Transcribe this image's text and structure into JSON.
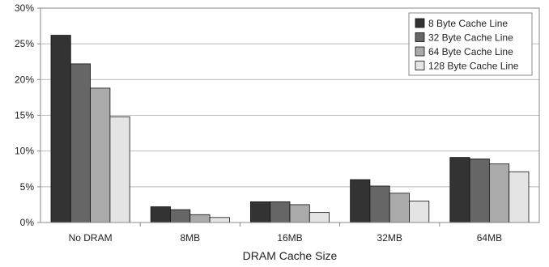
{
  "chart_data": {
    "type": "bar",
    "title": "",
    "xlabel": "DRAM Cache Size",
    "ylabel": "",
    "categories": [
      "No DRAM",
      "8MB",
      "16MB",
      "32MB",
      "64MB"
    ],
    "ylim": [
      0,
      30
    ],
    "yticks": [
      0,
      5,
      10,
      15,
      20,
      25,
      30
    ],
    "ytick_labels": [
      "0%",
      "5%",
      "10%",
      "15%",
      "20%",
      "25%",
      "30%"
    ],
    "grid": true,
    "legend_position": "top-right",
    "series": [
      {
        "name": "8 Byte Cache Line",
        "color": "#333333",
        "values": [
          26.2,
          2.2,
          2.9,
          6.0,
          9.1
        ]
      },
      {
        "name": "32 Byte Cache Line",
        "color": "#666666",
        "values": [
          22.2,
          1.8,
          2.9,
          5.1,
          8.9
        ]
      },
      {
        "name": "64 Byte Cache Line",
        "color": "#aaaaaa",
        "values": [
          18.8,
          1.1,
          2.5,
          4.1,
          8.2
        ]
      },
      {
        "name": "128 Byte Cache Line",
        "color": "#e4e4e4",
        "values": [
          14.8,
          0.7,
          1.4,
          3.0,
          7.1
        ]
      }
    ]
  }
}
